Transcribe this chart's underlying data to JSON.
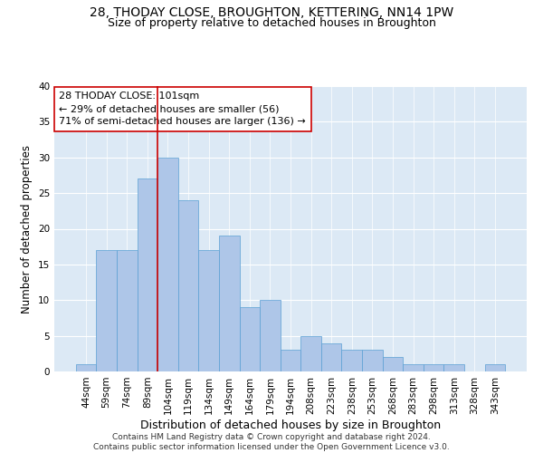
{
  "title": "28, THODAY CLOSE, BROUGHTON, KETTERING, NN14 1PW",
  "subtitle": "Size of property relative to detached houses in Broughton",
  "xlabel": "Distribution of detached houses by size in Broughton",
  "ylabel": "Number of detached properties",
  "categories": [
    "44sqm",
    "59sqm",
    "74sqm",
    "89sqm",
    "104sqm",
    "119sqm",
    "134sqm",
    "149sqm",
    "164sqm",
    "179sqm",
    "194sqm",
    "208sqm",
    "223sqm",
    "238sqm",
    "253sqm",
    "268sqm",
    "283sqm",
    "298sqm",
    "313sqm",
    "328sqm",
    "343sqm"
  ],
  "values": [
    1,
    17,
    17,
    27,
    30,
    24,
    17,
    19,
    9,
    10,
    3,
    5,
    4,
    3,
    3,
    2,
    1,
    1,
    1,
    0,
    1
  ],
  "bar_color": "#aec6e8",
  "bar_edge_color": "#5a9fd4",
  "vline_x": 3.5,
  "vline_color": "#cc0000",
  "annotation_line1": "28 THODAY CLOSE: 101sqm",
  "annotation_line2": "← 29% of detached houses are smaller (56)",
  "annotation_line3": "71% of semi-detached houses are larger (136) →",
  "annotation_box_color": "#ffffff",
  "annotation_box_edge_color": "#cc0000",
  "ylim": [
    0,
    40
  ],
  "yticks": [
    0,
    5,
    10,
    15,
    20,
    25,
    30,
    35,
    40
  ],
  "bg_color": "#dce9f5",
  "footer": "Contains HM Land Registry data © Crown copyright and database right 2024.\nContains public sector information licensed under the Open Government Licence v3.0.",
  "title_fontsize": 10,
  "subtitle_fontsize": 9,
  "xlabel_fontsize": 9,
  "ylabel_fontsize": 8.5,
  "tick_fontsize": 7.5,
  "annotation_fontsize": 8,
  "footer_fontsize": 6.5
}
